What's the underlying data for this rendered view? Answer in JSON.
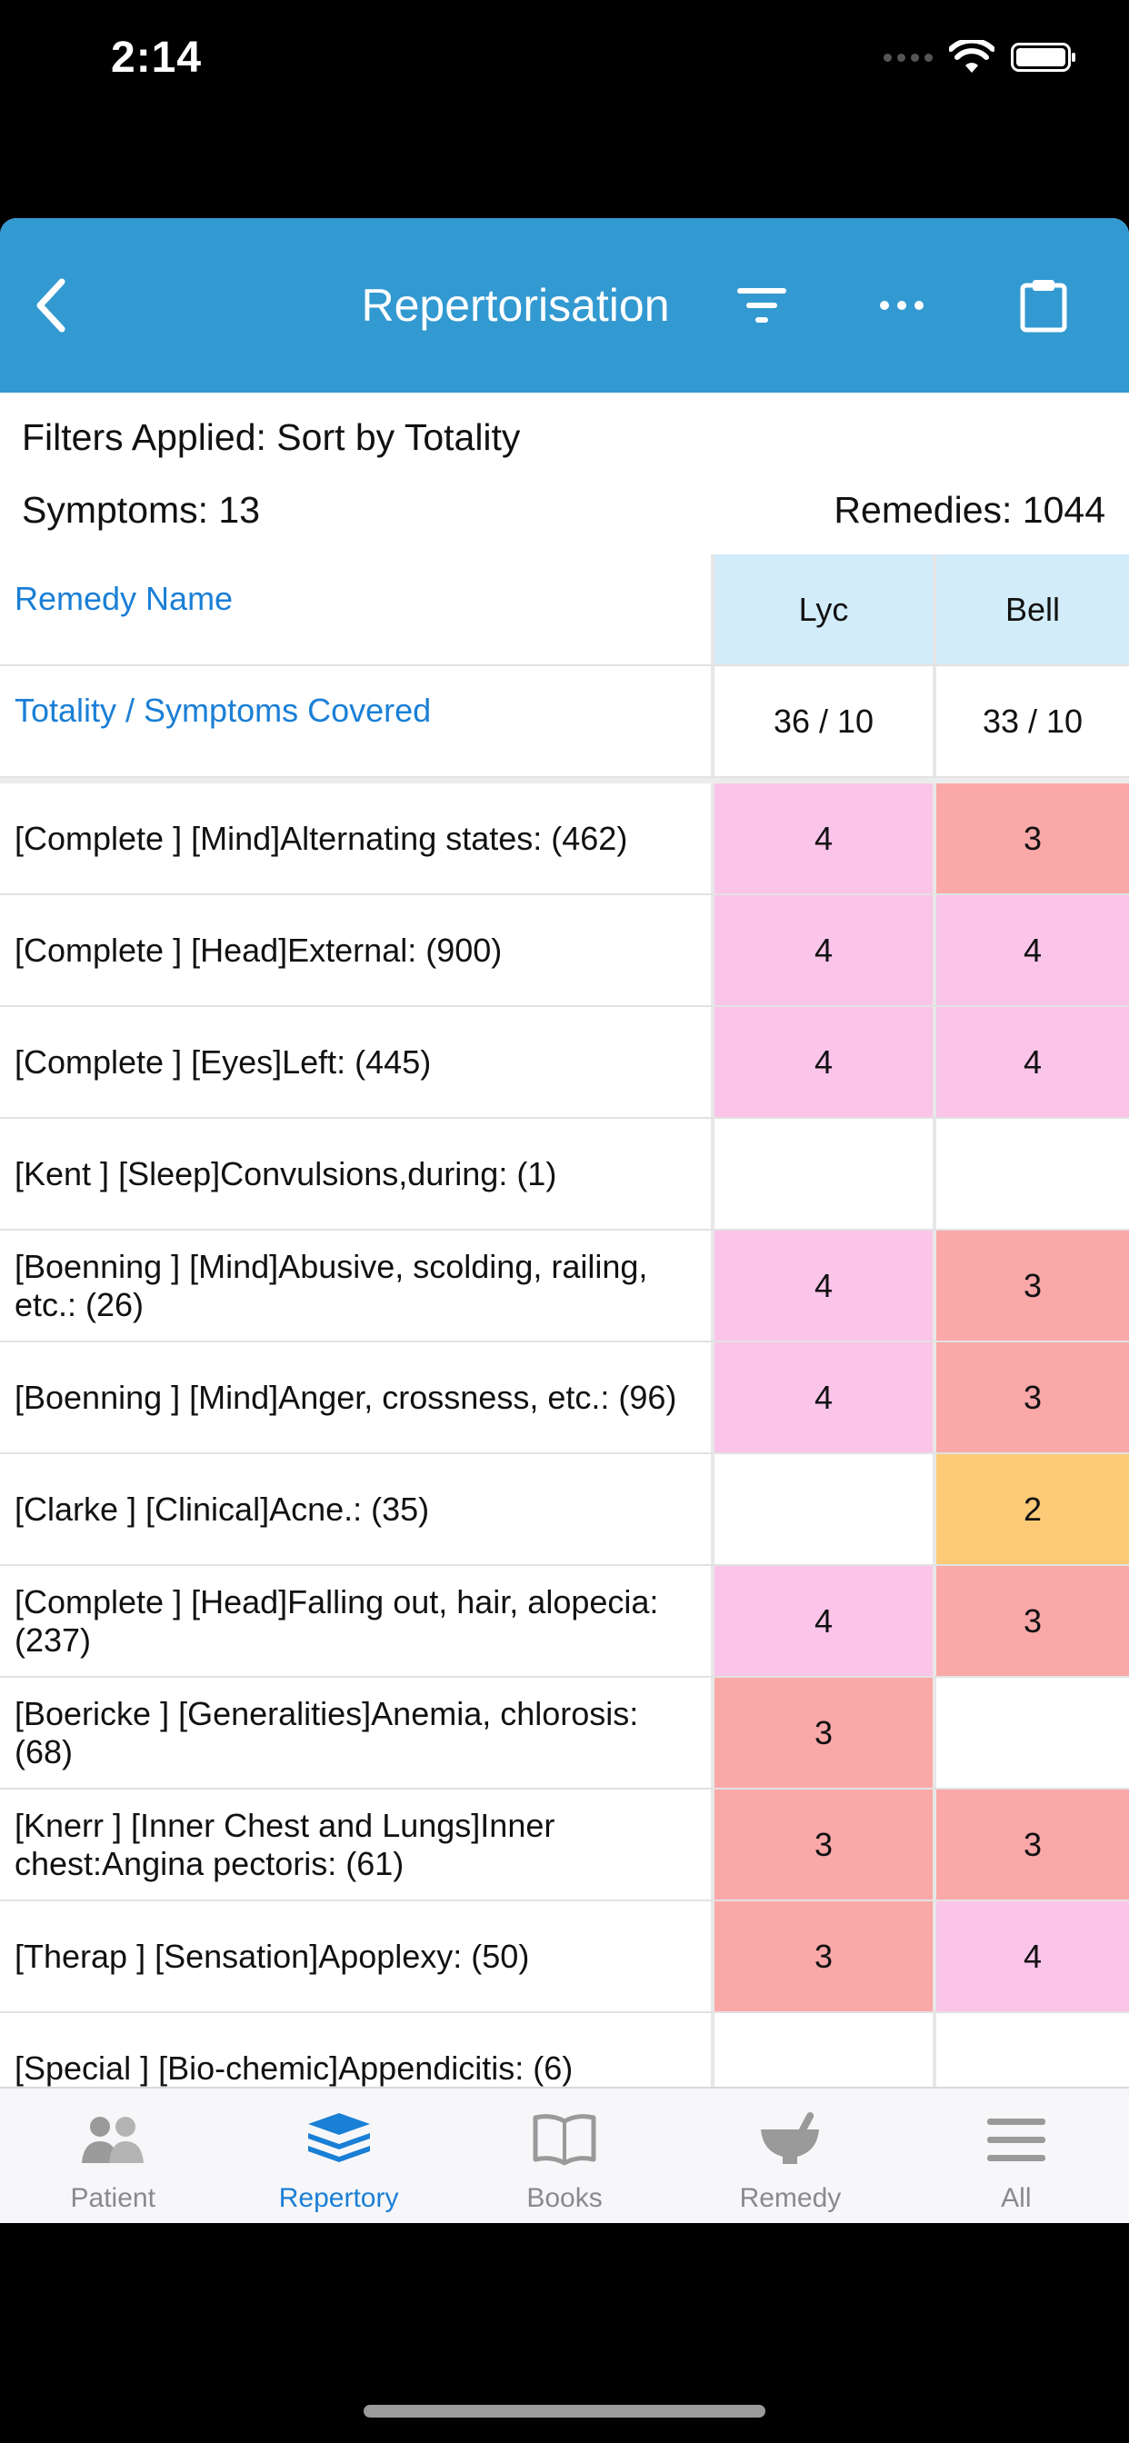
{
  "status_bar": {
    "time": "2:14"
  },
  "header": {
    "title": "Repertorisation"
  },
  "info": {
    "filters_text": "Filters Applied:  Sort by Totality",
    "symptoms_text": "Symptoms:  13",
    "remedies_text": "Remedies:  1044"
  },
  "table": {
    "remedy_name_label": "Remedy Name",
    "totality_label": "Totality / Symptoms Covered",
    "remedies": [
      {
        "name": "Lyc",
        "totality": "36 / 10"
      },
      {
        "name": "Bell",
        "totality": "33 / 10"
      }
    ],
    "rows": [
      {
        "label": "[Complete ] [Mind]Alternating states: (462)",
        "values": [
          "4",
          "3"
        ]
      },
      {
        "label": "[Complete ] [Head]External: (900)",
        "values": [
          "4",
          "4"
        ]
      },
      {
        "label": "[Complete ] [Eyes]Left: (445)",
        "values": [
          "4",
          "4"
        ]
      },
      {
        "label": "[Kent ] [Sleep]Convulsions,during: (1)",
        "values": [
          "",
          ""
        ]
      },
      {
        "label": "[Boenning ] [Mind]Abusive, scolding, railing, etc.: (26)",
        "values": [
          "4",
          "3"
        ]
      },
      {
        "label": "[Boenning ] [Mind]Anger, crossness, etc.: (96)",
        "values": [
          "4",
          "3"
        ]
      },
      {
        "label": "[Clarke ] [Clinical]Acne.: (35)",
        "values": [
          "",
          "2"
        ]
      },
      {
        "label": "[Complete ] [Head]Falling out, hair, alopecia: (237)",
        "values": [
          "4",
          "3"
        ]
      },
      {
        "label": "[Boericke ] [Generalities]Anemia, chlorosis: (68)",
        "values": [
          "3",
          ""
        ]
      },
      {
        "label": "[Knerr ] [Inner Chest and Lungs]Inner chest:Angina pectoris: (61)",
        "values": [
          "3",
          "3"
        ]
      },
      {
        "label": "[Therap ] [Sensation]Apoplexy: (50)",
        "values": [
          "3",
          "4"
        ]
      },
      {
        "label": "[Special ] [Bio-chemic]Appendicitis: (6)",
        "values": [
          "",
          ""
        ]
      }
    ]
  },
  "grade_colors": {
    "4": "#fbc4e9",
    "3": "#fba8a8",
    "2": "#fdcb77"
  },
  "header_cell_color": "#d3ecfa",
  "accent_color": "#3399d1",
  "tabs": [
    {
      "label": "Patient",
      "icon": "patient-icon"
    },
    {
      "label": "Repertory",
      "icon": "repertory-icon",
      "active": true
    },
    {
      "label": "Books",
      "icon": "books-icon"
    },
    {
      "label": "Remedy",
      "icon": "remedy-icon"
    },
    {
      "label": "All",
      "icon": "menu-icon"
    }
  ]
}
